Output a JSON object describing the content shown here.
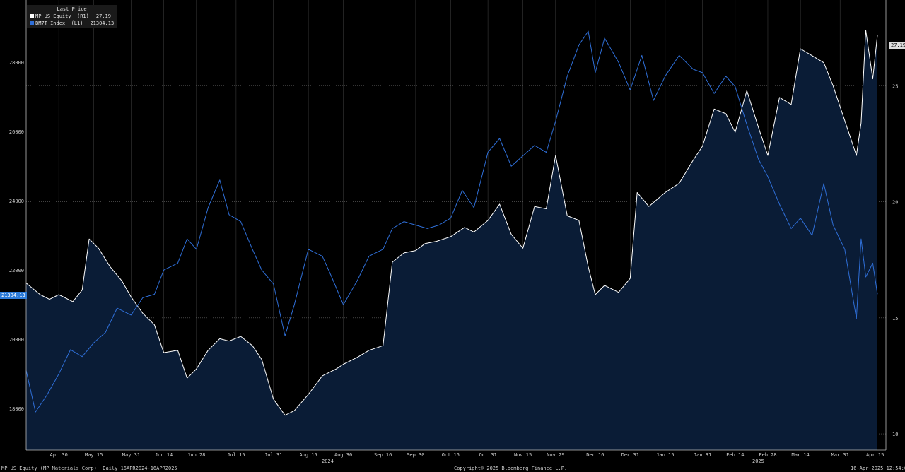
{
  "legend": {
    "title": "Last Price",
    "items": [
      {
        "label": "MP US Equity  (R1)",
        "value": "27.19",
        "color": "#ffffff"
      },
      {
        "label": "BM7T Index  (L1)",
        "value": "21304.13",
        "color": "#2f6fd8"
      }
    ]
  },
  "badges": {
    "left_last": "21304.13",
    "right_last": "27.19"
  },
  "footer": {
    "left": "MP US Equity (MP Materials Corp)  Daily 16APR2024-16APR2025",
    "center": "Copyright© 2025 Bloomberg Finance L.P.",
    "right": "16-Apr-2025 12:54:00"
  },
  "years": {
    "y2024": "2024",
    "y2025": "2025"
  },
  "chart_data": {
    "type": "line",
    "x_tick_labels": [
      "Apr 30",
      "May 15",
      "May 31",
      "Jun 14",
      "Jun 28",
      "Jul 15",
      "Jul 31",
      "Aug 15",
      "Aug 30",
      "Sep 16",
      "Sep 30",
      "Oct 15",
      "Oct 31",
      "Nov 15",
      "Nov 29",
      "Dec 16",
      "Dec 31",
      "Jan 15",
      "Jan 31",
      "Feb 14",
      "Feb 28",
      "Mar 14",
      "Mar 31",
      "Apr 15"
    ],
    "x_tick_dates": [
      "2024-04-30",
      "2024-05-15",
      "2024-05-31",
      "2024-06-14",
      "2024-06-28",
      "2024-07-15",
      "2024-07-31",
      "2024-08-15",
      "2024-08-30",
      "2024-09-16",
      "2024-09-30",
      "2024-10-15",
      "2024-10-31",
      "2024-11-15",
      "2024-11-29",
      "2024-12-16",
      "2024-12-31",
      "2025-01-15",
      "2025-01-31",
      "2025-02-14",
      "2025-02-28",
      "2025-03-14",
      "2025-03-31",
      "2025-04-15"
    ],
    "left_axis": {
      "ticks": [
        18000,
        20000,
        22000,
        24000,
        26000,
        28000
      ],
      "ylim": [
        16800,
        29800
      ]
    },
    "right_axis": {
      "ticks": [
        10,
        15,
        20,
        25
      ],
      "ylim": [
        9.3,
        28.7
      ]
    },
    "grid": true,
    "legend_position": "top-left",
    "series": [
      {
        "name": "MP US Equity",
        "axis": "right",
        "style": "area",
        "color": "#ffffff",
        "fill": "#0a1c36",
        "points": [
          [
            "2024-04-16",
            16.5
          ],
          [
            "2024-04-22",
            16.0
          ],
          [
            "2024-04-26",
            15.8
          ],
          [
            "2024-04-30",
            16.0
          ],
          [
            "2024-05-06",
            15.7
          ],
          [
            "2024-05-10",
            16.2
          ],
          [
            "2024-05-13",
            18.4
          ],
          [
            "2024-05-17",
            18.0
          ],
          [
            "2024-05-22",
            17.2
          ],
          [
            "2024-05-27",
            16.6
          ],
          [
            "2024-05-31",
            15.9
          ],
          [
            "2024-06-05",
            15.2
          ],
          [
            "2024-06-10",
            14.7
          ],
          [
            "2024-06-14",
            13.5
          ],
          [
            "2024-06-20",
            13.6
          ],
          [
            "2024-06-24",
            12.4
          ],
          [
            "2024-06-28",
            12.8
          ],
          [
            "2024-07-03",
            13.6
          ],
          [
            "2024-07-08",
            14.1
          ],
          [
            "2024-07-12",
            14.0
          ],
          [
            "2024-07-17",
            14.2
          ],
          [
            "2024-07-22",
            13.8
          ],
          [
            "2024-07-26",
            13.2
          ],
          [
            "2024-07-31",
            11.5
          ],
          [
            "2024-08-05",
            10.8
          ],
          [
            "2024-08-09",
            11.0
          ],
          [
            "2024-08-15",
            11.7
          ],
          [
            "2024-08-21",
            12.5
          ],
          [
            "2024-08-27",
            12.8
          ],
          [
            "2024-08-30",
            13.0
          ],
          [
            "2024-09-05",
            13.3
          ],
          [
            "2024-09-10",
            13.6
          ],
          [
            "2024-09-16",
            13.8
          ],
          [
            "2024-09-20",
            17.4
          ],
          [
            "2024-09-25",
            17.8
          ],
          [
            "2024-09-30",
            17.9
          ],
          [
            "2024-10-04",
            18.2
          ],
          [
            "2024-10-09",
            18.3
          ],
          [
            "2024-10-15",
            18.5
          ],
          [
            "2024-10-21",
            18.9
          ],
          [
            "2024-10-25",
            18.7
          ],
          [
            "2024-10-31",
            19.2
          ],
          [
            "2024-11-05",
            19.9
          ],
          [
            "2024-11-10",
            18.6
          ],
          [
            "2024-11-15",
            18.0
          ],
          [
            "2024-11-20",
            19.8
          ],
          [
            "2024-11-25",
            19.7
          ],
          [
            "2024-11-29",
            22.0
          ],
          [
            "2024-12-04",
            19.4
          ],
          [
            "2024-12-09",
            19.2
          ],
          [
            "2024-12-13",
            17.2
          ],
          [
            "2024-12-16",
            16.0
          ],
          [
            "2024-12-20",
            16.4
          ],
          [
            "2024-12-26",
            16.1
          ],
          [
            "2024-12-31",
            16.7
          ],
          [
            "2025-01-03",
            20.4
          ],
          [
            "2025-01-08",
            19.8
          ],
          [
            "2025-01-15",
            20.4
          ],
          [
            "2025-01-21",
            20.8
          ],
          [
            "2025-01-27",
            21.8
          ],
          [
            "2025-01-31",
            22.4
          ],
          [
            "2025-02-05",
            24.0
          ],
          [
            "2025-02-10",
            23.8
          ],
          [
            "2025-02-14",
            23.0
          ],
          [
            "2025-02-19",
            24.8
          ],
          [
            "2025-02-24",
            23.2
          ],
          [
            "2025-02-28",
            22.0
          ],
          [
            "2025-03-05",
            24.5
          ],
          [
            "2025-03-10",
            24.2
          ],
          [
            "2025-03-14",
            26.6
          ],
          [
            "2025-03-19",
            26.3
          ],
          [
            "2025-03-24",
            26.0
          ],
          [
            "2025-03-28",
            25.0
          ],
          [
            "2025-04-02",
            23.5
          ],
          [
            "2025-04-07",
            22.0
          ],
          [
            "2025-04-09",
            23.4
          ],
          [
            "2025-04-11",
            27.4
          ],
          [
            "2025-04-14",
            25.3
          ],
          [
            "2025-04-16",
            27.19
          ]
        ]
      },
      {
        "name": "BM7T Index",
        "axis": "left",
        "style": "line",
        "color": "#2f6fd8",
        "points": [
          [
            "2024-04-16",
            19100
          ],
          [
            "2024-04-20",
            17900
          ],
          [
            "2024-04-25",
            18400
          ],
          [
            "2024-04-30",
            19000
          ],
          [
            "2024-05-05",
            19700
          ],
          [
            "2024-05-10",
            19500
          ],
          [
            "2024-05-15",
            19900
          ],
          [
            "2024-05-20",
            20200
          ],
          [
            "2024-05-25",
            20900
          ],
          [
            "2024-05-31",
            20700
          ],
          [
            "2024-06-05",
            21200
          ],
          [
            "2024-06-10",
            21300
          ],
          [
            "2024-06-14",
            22000
          ],
          [
            "2024-06-20",
            22200
          ],
          [
            "2024-06-24",
            22900
          ],
          [
            "2024-06-28",
            22600
          ],
          [
            "2024-07-03",
            23800
          ],
          [
            "2024-07-08",
            24600
          ],
          [
            "2024-07-12",
            23600
          ],
          [
            "2024-07-17",
            23400
          ],
          [
            "2024-07-22",
            22600
          ],
          [
            "2024-07-26",
            22000
          ],
          [
            "2024-07-31",
            21600
          ],
          [
            "2024-08-05",
            20100
          ],
          [
            "2024-08-09",
            21000
          ],
          [
            "2024-08-15",
            22600
          ],
          [
            "2024-08-21",
            22400
          ],
          [
            "2024-08-25",
            21800
          ],
          [
            "2024-08-30",
            21000
          ],
          [
            "2024-09-05",
            21700
          ],
          [
            "2024-09-10",
            22400
          ],
          [
            "2024-09-16",
            22600
          ],
          [
            "2024-09-20",
            23200
          ],
          [
            "2024-09-25",
            23400
          ],
          [
            "2024-09-30",
            23300
          ],
          [
            "2024-10-05",
            23200
          ],
          [
            "2024-10-10",
            23300
          ],
          [
            "2024-10-15",
            23500
          ],
          [
            "2024-10-20",
            24300
          ],
          [
            "2024-10-25",
            23800
          ],
          [
            "2024-10-31",
            25400
          ],
          [
            "2024-11-05",
            25800
          ],
          [
            "2024-11-10",
            25000
          ],
          [
            "2024-11-15",
            25300
          ],
          [
            "2024-11-20",
            25600
          ],
          [
            "2024-11-25",
            25400
          ],
          [
            "2024-11-29",
            26300
          ],
          [
            "2024-12-04",
            27600
          ],
          [
            "2024-12-09",
            28500
          ],
          [
            "2024-12-13",
            28900
          ],
          [
            "2024-12-16",
            27700
          ],
          [
            "2024-12-20",
            28700
          ],
          [
            "2024-12-26",
            28000
          ],
          [
            "2024-12-31",
            27200
          ],
          [
            "2025-01-05",
            28200
          ],
          [
            "2025-01-10",
            26900
          ],
          [
            "2025-01-15",
            27600
          ],
          [
            "2025-01-21",
            28200
          ],
          [
            "2025-01-27",
            27800
          ],
          [
            "2025-01-31",
            27700
          ],
          [
            "2025-02-05",
            27100
          ],
          [
            "2025-02-10",
            27600
          ],
          [
            "2025-02-14",
            27300
          ],
          [
            "2025-02-19",
            26200
          ],
          [
            "2025-02-24",
            25200
          ],
          [
            "2025-02-28",
            24700
          ],
          [
            "2025-03-05",
            23900
          ],
          [
            "2025-03-10",
            23200
          ],
          [
            "2025-03-14",
            23500
          ],
          [
            "2025-03-19",
            23000
          ],
          [
            "2025-03-24",
            24500
          ],
          [
            "2025-03-28",
            23300
          ],
          [
            "2025-04-02",
            22600
          ],
          [
            "2025-04-07",
            20600
          ],
          [
            "2025-04-09",
            22900
          ],
          [
            "2025-04-11",
            21800
          ],
          [
            "2025-04-14",
            22200
          ],
          [
            "2025-04-16",
            21304.13
          ]
        ]
      }
    ]
  }
}
